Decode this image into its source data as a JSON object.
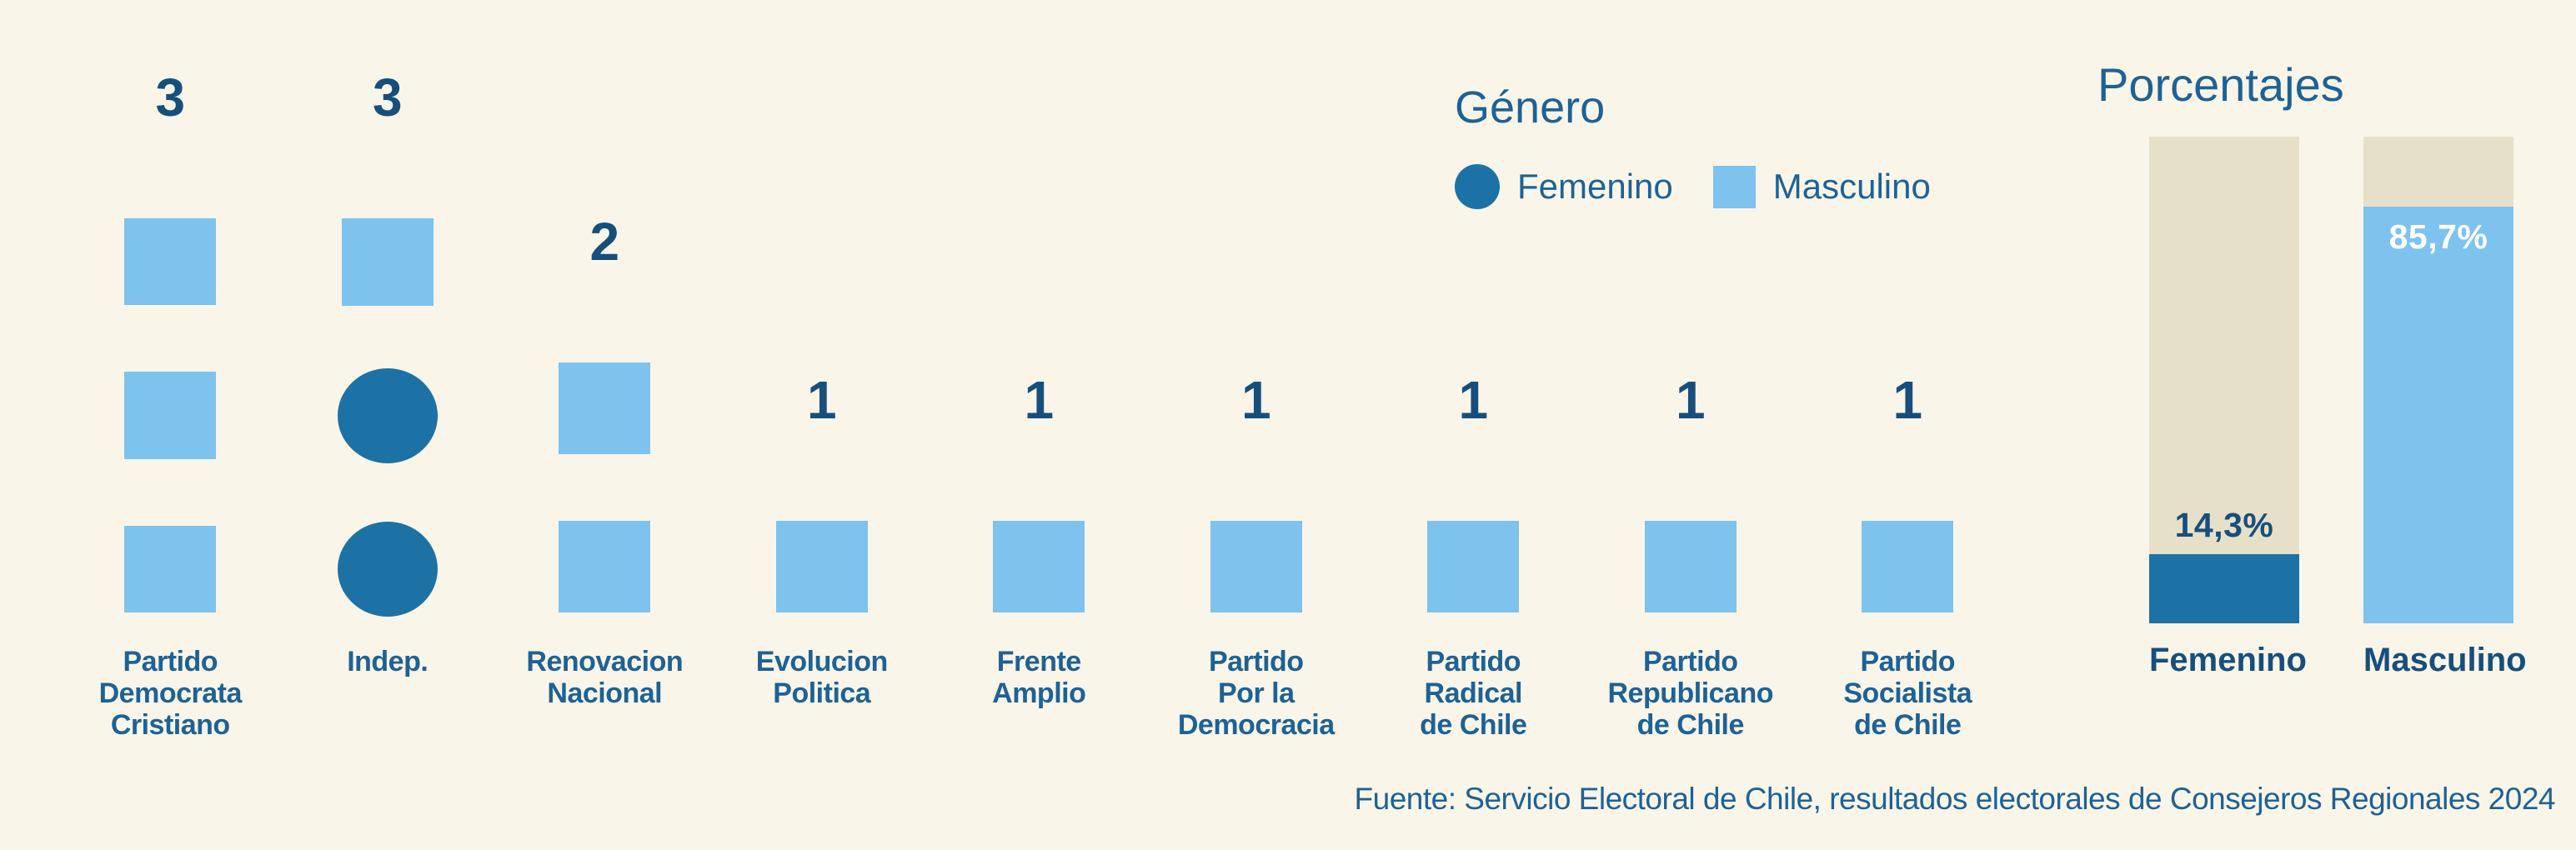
{
  "colors": {
    "background": "#FAF5E9",
    "masculino_light_blue": "#7DC3EE",
    "femenino_dark_blue": "#1C72A4",
    "bar_track_beige": "#E7E0C9",
    "text_navy": "#1D6295",
    "text_navy_dark": "#174F7C",
    "value_white": "#FFFFFF"
  },
  "legend": {
    "title": "Género",
    "items": [
      {
        "label": "Femenino",
        "shape": "circle",
        "color": "#1C72A4"
      },
      {
        "label": "Masculino",
        "shape": "square",
        "color": "#7DC3EE"
      }
    ]
  },
  "pictogram": {
    "columns": [
      {
        "label": "Partido\nDemocrata\nCristiano",
        "count": "3",
        "icons": [
          "square",
          "square",
          "square"
        ]
      },
      {
        "label": "Indep.",
        "count": "3",
        "icons": [
          "square",
          "circle",
          "circle"
        ]
      },
      {
        "label": "Renovacion\nNacional",
        "count": "2",
        "icons": [
          "square",
          "square"
        ]
      },
      {
        "label": "Evolucion\nPolitica",
        "count": "1",
        "icons": [
          "square"
        ]
      },
      {
        "label": "Frente\nAmplio",
        "count": "1",
        "icons": [
          "square"
        ]
      },
      {
        "label": "Partido\nPor la\nDemocracia",
        "count": "1",
        "icons": [
          "square"
        ]
      },
      {
        "label": "Partido\nRadical\nde Chile",
        "count": "1",
        "icons": [
          "square"
        ]
      },
      {
        "label": "Partido\nRepublicano\nde Chile",
        "count": "1",
        "icons": [
          "square"
        ]
      },
      {
        "label": "Partido\nSocialista\nde Chile",
        "count": "1",
        "icons": [
          "square"
        ]
      }
    ]
  },
  "percentages": {
    "title": "Porcentajes",
    "bars": [
      {
        "label": "Femenino",
        "value_label": "14,3%",
        "percent": 14.3,
        "fill": "dark",
        "value_position": "above"
      },
      {
        "label": "Masculino",
        "value_label": "85,7%",
        "percent": 85.7,
        "fill": "light",
        "value_position": "inside"
      }
    ]
  },
  "source": "Fuente: Servicio Electoral de Chile, resultados electorales de Consejeros Regionales 2024",
  "chart_data": [
    {
      "type": "pictogram",
      "title": "",
      "categories": [
        "Partido Democrata Cristiano",
        "Indep.",
        "Renovacion Nacional",
        "Evolucion Politica",
        "Frente Amplio",
        "Partido Por la Democracia",
        "Partido Radical de Chile",
        "Partido Republicano de Chile",
        "Partido Socialista de Chile"
      ],
      "series": [
        {
          "name": "Femenino",
          "symbol": "circle",
          "values": [
            0,
            2,
            0,
            0,
            0,
            0,
            0,
            0,
            0
          ]
        },
        {
          "name": "Masculino",
          "symbol": "square",
          "values": [
            3,
            1,
            2,
            1,
            1,
            1,
            1,
            1,
            1
          ]
        }
      ],
      "totals": [
        3,
        3,
        2,
        1,
        1,
        1,
        1,
        1,
        1
      ],
      "legend_title": "Género",
      "legend_position": "top-right",
      "grid": false
    },
    {
      "type": "bar",
      "title": "Porcentajes",
      "categories": [
        "Femenino",
        "Masculino"
      ],
      "values": [
        14.3,
        85.7
      ],
      "value_labels": [
        "14,3%",
        "85,7%"
      ],
      "xlabel": "",
      "ylabel": "",
      "ylim": [
        0,
        100
      ],
      "grid": false,
      "bar_style": "filled portion over full-height beige track"
    }
  ]
}
